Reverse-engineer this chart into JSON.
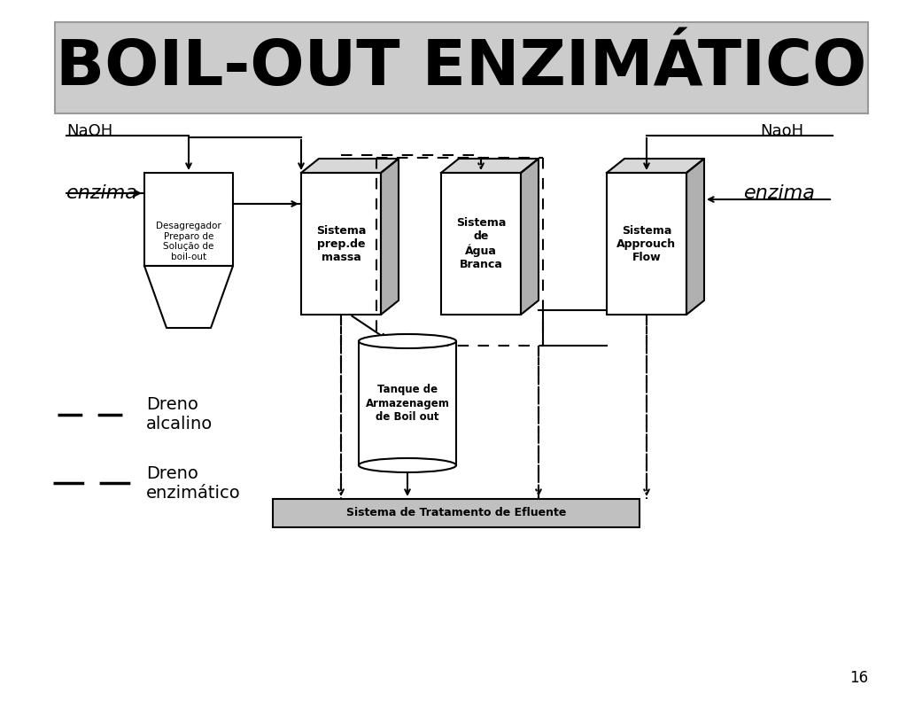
{
  "title": "BOIL-OUT ENZIMÁTICO",
  "bg_color": "#ffffff",
  "title_bg": "#c8c8c8",
  "page_number": "16",
  "naoh_left": "NaOH",
  "naoh_right": "NaoH",
  "enzima_left": "enzima",
  "enzima_right": "enzima",
  "dreno_alcalino": "Dreno\nalcalino",
  "dreno_enzimatico": "Dreno\nenzimático",
  "label_desag": "Desagregador\nPreparo de\nSolução de\nboil-out",
  "label_massa": "Sistema\nprep.de\nmassa",
  "label_agua": "Sistema\nde\nÁgua\nBranca",
  "label_appr": "Sistema\nApprouch\nFlow",
  "label_tanque": "Tanque de\nArmazenagem\nde Boil out",
  "label_efluente": "Sistema de Tratamento de Efluente"
}
